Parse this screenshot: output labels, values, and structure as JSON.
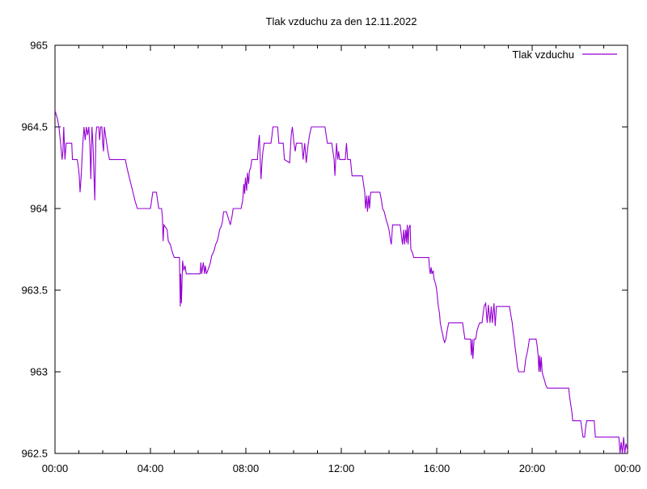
{
  "window": {
    "background": "#ffffff"
  },
  "chart_data": {
    "type": "line",
    "title": "Tlak vzduchu za den 12.11.2022",
    "xlabel": "",
    "ylabel": "",
    "x_unit": "minutes since 00:00",
    "xlim_minutes": [
      0,
      1440
    ],
    "ylim": [
      962.5,
      965
    ],
    "grid": false,
    "x_major_ticks": [
      {
        "minutes": 0,
        "label": "00:00"
      },
      {
        "minutes": 240,
        "label": "04:00"
      },
      {
        "minutes": 480,
        "label": "08:00"
      },
      {
        "minutes": 720,
        "label": "12:00"
      },
      {
        "minutes": 960,
        "label": "16:00"
      },
      {
        "minutes": 1200,
        "label": "20:00"
      },
      {
        "minutes": 1440,
        "label": "00:00"
      }
    ],
    "x_minor_tick_interval_minutes": 60,
    "y_ticks": [
      {
        "value": 965,
        "label": "965"
      },
      {
        "value": 964.5,
        "label": "964.5"
      },
      {
        "value": 964,
        "label": "964"
      },
      {
        "value": 963.5,
        "label": "963.5"
      },
      {
        "value": 963,
        "label": "963"
      },
      {
        "value": 962.5,
        "label": "962.5"
      }
    ],
    "legend": {
      "position": "top-right-inside",
      "entries": [
        {
          "label": "Tlak vzduchu",
          "color": "#9400d3"
        }
      ]
    },
    "series": [
      {
        "name": "Tlak vzduchu",
        "color": "#9400d3",
        "points_minutes_value": [
          [
            0,
            964.6
          ],
          [
            6,
            964.55
          ],
          [
            10,
            964.5
          ],
          [
            14,
            964.4
          ],
          [
            18,
            964.3
          ],
          [
            20,
            964.35
          ],
          [
            22,
            964.5
          ],
          [
            25,
            964.3
          ],
          [
            28,
            964.4
          ],
          [
            42,
            964.4
          ],
          [
            44,
            964.3
          ],
          [
            56,
            964.3
          ],
          [
            59,
            964.25
          ],
          [
            61,
            964.2
          ],
          [
            63,
            964.1
          ],
          [
            66,
            964.2
          ],
          [
            70,
            964.4
          ],
          [
            73,
            964.5
          ],
          [
            76,
            964.42
          ],
          [
            79,
            964.5
          ],
          [
            82,
            964.45
          ],
          [
            85,
            964.5
          ],
          [
            88,
            964.37
          ],
          [
            90,
            964.18
          ],
          [
            93,
            964.5
          ],
          [
            96,
            964.37
          ],
          [
            98,
            964.2
          ],
          [
            100,
            964.05
          ],
          [
            103,
            964.45
          ],
          [
            105,
            964.5
          ],
          [
            110,
            964.5
          ],
          [
            112,
            964.42
          ],
          [
            115,
            964.5
          ],
          [
            118,
            964.5
          ],
          [
            120,
            964.4
          ],
          [
            122,
            964.35
          ],
          [
            124,
            964.5
          ],
          [
            127,
            964.45
          ],
          [
            130,
            964.4
          ],
          [
            133,
            964.35
          ],
          [
            137,
            964.3
          ],
          [
            177,
            964.3
          ],
          [
            181,
            964.25
          ],
          [
            186,
            964.2
          ],
          [
            191,
            964.15
          ],
          [
            196,
            964.1
          ],
          [
            201,
            964.05
          ],
          [
            207,
            964.0
          ],
          [
            240,
            964.0
          ],
          [
            243,
            964.05
          ],
          [
            246,
            964.1
          ],
          [
            255,
            964.1
          ],
          [
            258,
            964.05
          ],
          [
            261,
            964.0
          ],
          [
            268,
            964.0
          ],
          [
            270,
            963.95
          ],
          [
            272,
            963.8
          ],
          [
            274,
            963.9
          ],
          [
            282,
            963.87
          ],
          [
            285,
            963.8
          ],
          [
            290,
            963.78
          ],
          [
            293,
            963.75
          ],
          [
            297,
            963.72
          ],
          [
            300,
            963.7
          ],
          [
            313,
            963.7
          ],
          [
            315,
            963.4
          ],
          [
            316,
            963.6
          ],
          [
            318,
            963.42
          ],
          [
            321,
            963.68
          ],
          [
            324,
            963.62
          ],
          [
            327,
            963.65
          ],
          [
            330,
            963.6
          ],
          [
            365,
            963.6
          ],
          [
            367,
            963.67
          ],
          [
            369,
            963.6
          ],
          [
            373,
            963.67
          ],
          [
            376,
            963.6
          ],
          [
            378,
            963.65
          ],
          [
            381,
            963.6
          ],
          [
            387,
            963.64
          ],
          [
            391,
            963.67
          ],
          [
            394,
            963.71
          ],
          [
            398,
            963.73
          ],
          [
            401,
            963.75
          ],
          [
            404,
            963.78
          ],
          [
            408,
            963.8
          ],
          [
            411,
            963.83
          ],
          [
            414,
            963.87
          ],
          [
            418,
            963.89
          ],
          [
            421,
            963.92
          ],
          [
            424,
            963.98
          ],
          [
            431,
            963.98
          ],
          [
            436,
            963.94
          ],
          [
            441,
            963.9
          ],
          [
            445,
            963.95
          ],
          [
            448,
            964.0
          ],
          [
            468,
            964.0
          ],
          [
            472,
            964.05
          ],
          [
            475,
            964.15
          ],
          [
            477,
            964.09
          ],
          [
            479,
            964.19
          ],
          [
            482,
            964.11
          ],
          [
            484,
            964.22
          ],
          [
            487,
            964.15
          ],
          [
            489,
            964.23
          ],
          [
            492,
            964.25
          ],
          [
            495,
            964.3
          ],
          [
            509,
            964.3
          ],
          [
            512,
            964.4
          ],
          [
            514,
            964.45
          ],
          [
            518,
            964.18
          ],
          [
            521,
            964.3
          ],
          [
            523,
            964.35
          ],
          [
            526,
            964.4
          ],
          [
            543,
            964.4
          ],
          [
            546,
            964.45
          ],
          [
            548,
            964.5
          ],
          [
            560,
            964.5
          ],
          [
            563,
            964.4
          ],
          [
            574,
            964.4
          ],
          [
            577,
            964.3
          ],
          [
            590,
            964.28
          ],
          [
            594,
            964.45
          ],
          [
            597,
            964.5
          ],
          [
            599,
            964.45
          ],
          [
            601,
            964.4
          ],
          [
            604,
            964.35
          ],
          [
            607,
            964.4
          ],
          [
            621,
            964.4
          ],
          [
            624,
            964.3
          ],
          [
            628,
            964.4
          ],
          [
            632,
            964.28
          ],
          [
            636,
            964.38
          ],
          [
            640,
            964.45
          ],
          [
            645,
            964.5
          ],
          [
            679,
            964.5
          ],
          [
            682,
            964.45
          ],
          [
            685,
            964.4
          ],
          [
            696,
            964.4
          ],
          [
            702,
            964.3
          ],
          [
            704,
            964.2
          ],
          [
            708,
            964.4
          ],
          [
            711,
            964.3
          ],
          [
            713,
            964.35
          ],
          [
            716,
            964.3
          ],
          [
            730,
            964.3
          ],
          [
            733,
            964.4
          ],
          [
            736,
            964.3
          ],
          [
            743,
            964.3
          ],
          [
            747,
            964.2
          ],
          [
            773,
            964.2
          ],
          [
            776,
            964.15
          ],
          [
            779,
            964.1
          ],
          [
            781,
            964.0
          ],
          [
            784,
            964.08
          ],
          [
            786,
            963.98
          ],
          [
            789,
            964.08
          ],
          [
            791,
            964.0
          ],
          [
            794,
            964.1
          ],
          [
            817,
            964.1
          ],
          [
            821,
            964.05
          ],
          [
            824,
            964.0
          ],
          [
            828,
            963.98
          ],
          [
            831,
            963.95
          ],
          [
            834,
            963.92
          ],
          [
            837,
            963.9
          ],
          [
            840,
            963.87
          ],
          [
            844,
            963.8
          ],
          [
            846,
            963.78
          ],
          [
            849,
            963.9
          ],
          [
            868,
            963.9
          ],
          [
            872,
            963.82
          ],
          [
            874,
            963.78
          ],
          [
            877,
            963.87
          ],
          [
            879,
            963.78
          ],
          [
            882,
            963.87
          ],
          [
            884,
            963.79
          ],
          [
            886,
            963.9
          ],
          [
            888,
            963.78
          ],
          [
            890,
            963.88
          ],
          [
            893,
            963.9
          ],
          [
            895,
            963.75
          ],
          [
            899,
            963.73
          ],
          [
            902,
            963.7
          ],
          [
            940,
            963.7
          ],
          [
            942,
            963.63
          ],
          [
            944,
            963.6
          ],
          [
            946,
            963.64
          ],
          [
            948,
            963.6
          ],
          [
            951,
            963.62
          ],
          [
            953,
            963.57
          ],
          [
            958,
            963.53
          ],
          [
            960,
            963.5
          ],
          [
            962,
            963.45
          ],
          [
            964,
            963.4
          ],
          [
            967,
            963.36
          ],
          [
            969,
            963.3
          ],
          [
            972,
            963.26
          ],
          [
            975,
            963.23
          ],
          [
            977,
            963.2
          ],
          [
            980,
            963.18
          ],
          [
            983,
            963.2
          ],
          [
            986,
            963.25
          ],
          [
            990,
            963.3
          ],
          [
            1025,
            963.3
          ],
          [
            1028,
            963.25
          ],
          [
            1031,
            963.2
          ],
          [
            1045,
            963.2
          ],
          [
            1047,
            963.1
          ],
          [
            1049,
            963.2
          ],
          [
            1051,
            963.08
          ],
          [
            1054,
            963.2
          ],
          [
            1058,
            963.2
          ],
          [
            1061,
            963.25
          ],
          [
            1065,
            963.28
          ],
          [
            1068,
            963.3
          ],
          [
            1074,
            963.3
          ],
          [
            1077,
            963.36
          ],
          [
            1079,
            963.4
          ],
          [
            1083,
            963.42
          ],
          [
            1087,
            963.3
          ],
          [
            1090,
            963.41
          ],
          [
            1094,
            963.3
          ],
          [
            1097,
            963.4
          ],
          [
            1100,
            963.3
          ],
          [
            1104,
            963.42
          ],
          [
            1107,
            963.28
          ],
          [
            1110,
            963.4
          ],
          [
            1143,
            963.4
          ],
          [
            1147,
            963.34
          ],
          [
            1150,
            963.3
          ],
          [
            1152,
            963.25
          ],
          [
            1155,
            963.2
          ],
          [
            1157,
            963.15
          ],
          [
            1160,
            963.1
          ],
          [
            1163,
            963.03
          ],
          [
            1166,
            963.0
          ],
          [
            1180,
            963.0
          ],
          [
            1184,
            963.08
          ],
          [
            1187,
            963.11
          ],
          [
            1190,
            963.15
          ],
          [
            1193,
            963.2
          ],
          [
            1210,
            963.2
          ],
          [
            1213,
            963.15
          ],
          [
            1215,
            963.1
          ],
          [
            1217,
            963.0
          ],
          [
            1219,
            963.1
          ],
          [
            1221,
            963.0
          ],
          [
            1223,
            963.09
          ],
          [
            1225,
            963.0
          ],
          [
            1228,
            962.97
          ],
          [
            1231,
            962.95
          ],
          [
            1234,
            962.92
          ],
          [
            1238,
            962.9
          ],
          [
            1292,
            962.9
          ],
          [
            1294,
            962.85
          ],
          [
            1297,
            962.8
          ],
          [
            1300,
            962.75
          ],
          [
            1302,
            962.7
          ],
          [
            1322,
            962.7
          ],
          [
            1325,
            962.65
          ],
          [
            1328,
            962.6
          ],
          [
            1332,
            962.6
          ],
          [
            1334,
            962.65
          ],
          [
            1337,
            962.7
          ],
          [
            1356,
            962.7
          ],
          [
            1359,
            962.6
          ],
          [
            1418,
            962.6
          ],
          [
            1421,
            962.5
          ],
          [
            1424,
            962.57
          ],
          [
            1427,
            962.5
          ],
          [
            1430,
            962.6
          ],
          [
            1433,
            962.5
          ],
          [
            1436,
            962.56
          ],
          [
            1440,
            962.52
          ]
        ]
      }
    ]
  },
  "colors": {
    "line": "#9400d3",
    "axis": "#000000",
    "text": "#000000",
    "background": "#ffffff"
  }
}
